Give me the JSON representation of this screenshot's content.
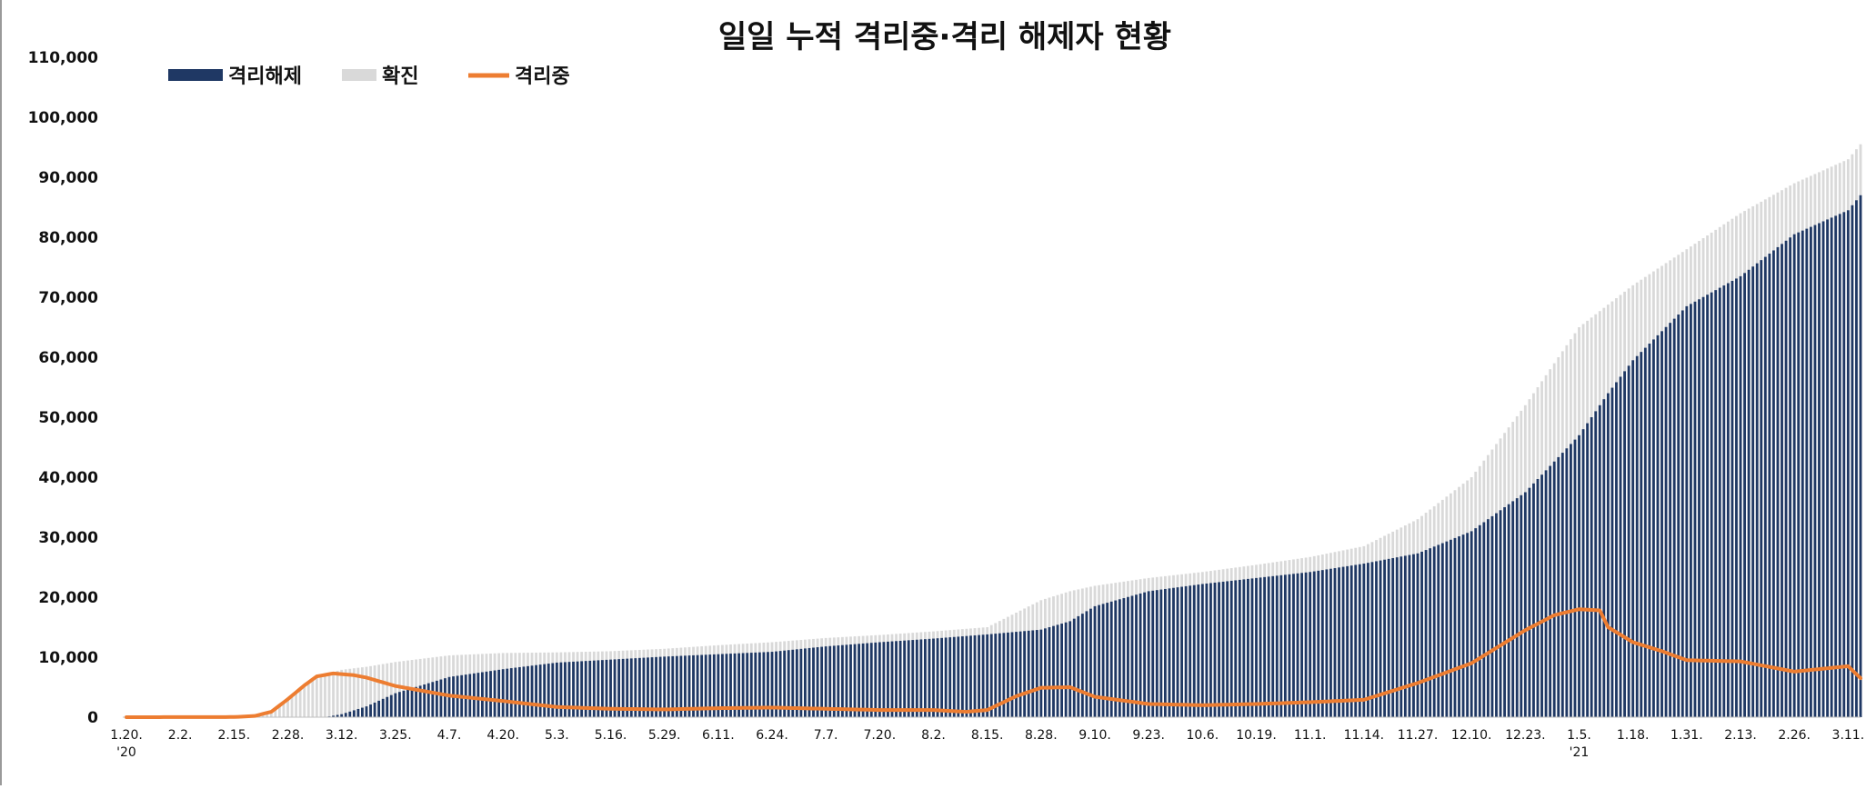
{
  "chart_data": {
    "type": "bar",
    "title": "일일 누적 격리중·격리 해제자 현황",
    "legend_position": "top-left",
    "ylim": [
      0,
      110000
    ],
    "yticks": [
      0,
      10000,
      20000,
      30000,
      40000,
      50000,
      60000,
      70000,
      80000,
      90000,
      100000,
      110000
    ],
    "ytick_labels": [
      "0",
      "10,000",
      "20,000",
      "30,000",
      "40,000",
      "50,000",
      "60,000",
      "70,000",
      "80,000",
      "90,000",
      "100,000",
      "110,000"
    ],
    "xtick_labels": [
      "1.20.",
      "2.2.",
      "2.15.",
      "2.28.",
      "3.12.",
      "3.25.",
      "4.7.",
      "4.20.",
      "5.3.",
      "5.16.",
      "5.29.",
      "6.11.",
      "6.24.",
      "7.7.",
      "7.20.",
      "8.2.",
      "8.15.",
      "8.28.",
      "9.10.",
      "9.23.",
      "10.6.",
      "10.19.",
      "11.1.",
      "11.14.",
      "11.27.",
      "12.10.",
      "12.23.",
      "1.5.",
      "1.18.",
      "1.31.",
      "2.13.",
      "2.26.",
      "3.11."
    ],
    "year_labels": [
      {
        "after_tick": "1.20.",
        "label": "'20"
      },
      {
        "after_tick": "1.5.",
        "label": "'21"
      }
    ],
    "grid": false,
    "series": [
      {
        "name": "격리해제",
        "kind": "bar",
        "color": "#1f3864",
        "points": [
          [
            "1.20.",
            0
          ],
          [
            "2.28.",
            0
          ],
          [
            "3.8.",
            0
          ],
          [
            "3.12.",
            500
          ],
          [
            "3.18.",
            1800
          ],
          [
            "3.25.",
            4000
          ],
          [
            "4.7.",
            6700
          ],
          [
            "4.20.",
            8000
          ],
          [
            "5.3.",
            9100
          ],
          [
            "5.16.",
            9600
          ],
          [
            "5.29.",
            10100
          ],
          [
            "6.11.",
            10500
          ],
          [
            "6.24.",
            10900
          ],
          [
            "7.7.",
            11800
          ],
          [
            "7.20.",
            12500
          ],
          [
            "8.2.",
            13100
          ],
          [
            "8.15.",
            13800
          ],
          [
            "8.28.",
            14600
          ],
          [
            "9.4.",
            16000
          ],
          [
            "9.10.",
            18500
          ],
          [
            "9.23.",
            21000
          ],
          [
            "10.6.",
            22200
          ],
          [
            "10.19.",
            23200
          ],
          [
            "11.1.",
            24200
          ],
          [
            "11.14.",
            25600
          ],
          [
            "11.27.",
            27300
          ],
          [
            "12.10.",
            31000
          ],
          [
            "12.23.",
            37500
          ],
          [
            "1.5.",
            47000
          ],
          [
            "1.12.",
            54000
          ],
          [
            "1.18.",
            59500
          ],
          [
            "1.31.",
            68500
          ],
          [
            "2.13.",
            73500
          ],
          [
            "2.26.",
            80500
          ],
          [
            "3.11.",
            84500
          ],
          [
            "3.14.",
            87000
          ]
        ]
      },
      {
        "name": "확진",
        "kind": "bar",
        "color": "#d9d9d9",
        "points": [
          [
            "1.20.",
            0
          ],
          [
            "2.15.",
            30
          ],
          [
            "2.20.",
            200
          ],
          [
            "2.24.",
            900
          ],
          [
            "2.28.",
            3000
          ],
          [
            "3.3.",
            5300
          ],
          [
            "3.6.",
            6800
          ],
          [
            "3.12.",
            7900
          ],
          [
            "3.18.",
            8400
          ],
          [
            "3.25.",
            9200
          ],
          [
            "4.7.",
            10300
          ],
          [
            "4.20.",
            10700
          ],
          [
            "5.3.",
            10800
          ],
          [
            "5.16.",
            11000
          ],
          [
            "5.29.",
            11400
          ],
          [
            "6.11.",
            12000
          ],
          [
            "6.24.",
            12500
          ],
          [
            "7.7.",
            13200
          ],
          [
            "7.20.",
            13700
          ],
          [
            "8.2.",
            14300
          ],
          [
            "8.15.",
            15000
          ],
          [
            "8.28.",
            19500
          ],
          [
            "9.4.",
            21000
          ],
          [
            "9.10.",
            21900
          ],
          [
            "9.23.",
            23200
          ],
          [
            "10.6.",
            24200
          ],
          [
            "10.19.",
            25400
          ],
          [
            "11.1.",
            26700
          ],
          [
            "11.14.",
            28500
          ],
          [
            "11.27.",
            33000
          ],
          [
            "12.10.",
            40000
          ],
          [
            "12.23.",
            52000
          ],
          [
            "1.5.",
            65000
          ],
          [
            "1.18.",
            72000
          ],
          [
            "1.31.",
            78000
          ],
          [
            "2.13.",
            84000
          ],
          [
            "2.26.",
            89000
          ],
          [
            "3.11.",
            93000
          ],
          [
            "3.14.",
            95500
          ]
        ]
      },
      {
        "name": "격리중",
        "kind": "line",
        "color": "#ed7d31",
        "points": [
          [
            "1.20.",
            0
          ],
          [
            "2.15.",
            30
          ],
          [
            "2.20.",
            200
          ],
          [
            "2.24.",
            900
          ],
          [
            "2.28.",
            3000
          ],
          [
            "3.3.",
            5300
          ],
          [
            "3.6.",
            6800
          ],
          [
            "3.10.",
            7300
          ],
          [
            "3.15.",
            7000
          ],
          [
            "3.18.",
            6600
          ],
          [
            "3.25.",
            5200
          ],
          [
            "4.7.",
            3600
          ],
          [
            "4.20.",
            2700
          ],
          [
            "5.3.",
            1700
          ],
          [
            "5.16.",
            1400
          ],
          [
            "5.29.",
            1300
          ],
          [
            "6.11.",
            1500
          ],
          [
            "6.24.",
            1600
          ],
          [
            "7.7.",
            1400
          ],
          [
            "7.20.",
            1200
          ],
          [
            "8.2.",
            1200
          ],
          [
            "8.10.",
            900
          ],
          [
            "8.15.",
            1200
          ],
          [
            "8.22.",
            3500
          ],
          [
            "8.28.",
            4900
          ],
          [
            "9.4.",
            5000
          ],
          [
            "9.10.",
            3400
          ],
          [
            "9.23.",
            2200
          ],
          [
            "10.6.",
            2000
          ],
          [
            "10.19.",
            2200
          ],
          [
            "11.1.",
            2500
          ],
          [
            "11.14.",
            2900
          ],
          [
            "11.27.",
            5700
          ],
          [
            "12.10.",
            9000
          ],
          [
            "12.23.",
            14500
          ],
          [
            "12.30.",
            17000
          ],
          [
            "1.5.",
            18000
          ],
          [
            "1.10.",
            17800
          ],
          [
            "1.12.",
            15000
          ],
          [
            "1.18.",
            12500
          ],
          [
            "1.25.",
            11000
          ],
          [
            "1.31.",
            9500
          ],
          [
            "2.13.",
            9300
          ],
          [
            "2.26.",
            7600
          ],
          [
            "3.11.",
            8500
          ],
          [
            "3.14.",
            6500
          ]
        ]
      }
    ]
  }
}
